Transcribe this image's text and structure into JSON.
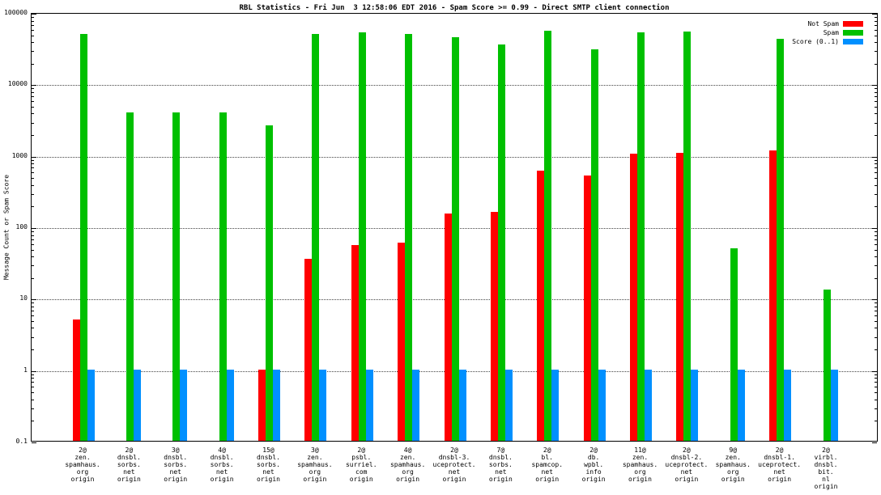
{
  "title": "RBL Statistics - Fri Jun  3 12:58:06 EDT 2016 - Spam Score >= 0.99 - Direct SMTP client connection",
  "ylabel": "Message Count or Spam Score",
  "colors": {
    "not_spam": "#ff0000",
    "spam": "#00c000",
    "score": "#0090ff",
    "axis": "#000000",
    "background": "#ffffff"
  },
  "chart_data": {
    "type": "bar",
    "scale": "log",
    "ylim": [
      0.1,
      100000
    ],
    "grid": true,
    "legend_position": "top-right",
    "yticks": [
      {
        "value": 100000,
        "label": "100000"
      },
      {
        "value": 10000,
        "label": "10000"
      },
      {
        "value": 1000,
        "label": "1000"
      },
      {
        "value": 100,
        "label": "100"
      },
      {
        "value": 10,
        "label": "10"
      },
      {
        "value": 1,
        "label": "1"
      },
      {
        "value": 0.1,
        "label": "0.1"
      }
    ],
    "categories": [
      [
        "2@",
        "zen.",
        "spamhaus.",
        "org",
        "origin"
      ],
      [
        "2@",
        "dnsbl.",
        "sorbs.",
        "net",
        "origin"
      ],
      [
        "3@",
        "dnsbl.",
        "sorbs.",
        "net",
        "origin"
      ],
      [
        "4@",
        "dnsbl.",
        "sorbs.",
        "net",
        "origin"
      ],
      [
        "15@",
        "dnsbl.",
        "sorbs.",
        "net",
        "origin"
      ],
      [
        "3@",
        "zen.",
        "spamhaus.",
        "org",
        "origin"
      ],
      [
        "2@",
        "psbl.",
        "surriel.",
        "com",
        "origin"
      ],
      [
        "4@",
        "zen.",
        "spamhaus.",
        "org",
        "origin"
      ],
      [
        "2@",
        "dnsbl-3.",
        "uceprotect.",
        "net",
        "origin"
      ],
      [
        "7@",
        "dnsbl.",
        "sorbs.",
        "net",
        "origin"
      ],
      [
        "2@",
        "bl.",
        "spamcop.",
        "net",
        "origin"
      ],
      [
        "2@",
        "db.",
        "wpbl.",
        "info",
        "origin"
      ],
      [
        "11@",
        "zen.",
        "spamhaus.",
        "org",
        "origin"
      ],
      [
        "2@",
        "dnsbl-2.",
        "uceprotect.",
        "net",
        "origin"
      ],
      [
        "9@",
        "zen.",
        "spamhaus.",
        "org",
        "origin"
      ],
      [
        "2@",
        "dnsbl-1.",
        "uceprotect.",
        "net",
        "origin"
      ],
      [
        "2@",
        "virbl.",
        "dnsbl.",
        "bit.",
        "nl",
        "origin"
      ]
    ],
    "series": [
      {
        "name": "Not Spam",
        "color": "#ff0000",
        "values": [
          5,
          0,
          0,
          0,
          1,
          35,
          55,
          60,
          150,
          160,
          600,
          520,
          1050,
          1080,
          0,
          1150,
          0
        ]
      },
      {
        "name": "Spam",
        "color": "#00c000",
        "values": [
          50000,
          4000,
          4000,
          4000,
          2600,
          50000,
          52000,
          50000,
          45000,
          35000,
          55000,
          30000,
          52000,
          53000,
          50,
          42000,
          13
        ]
      },
      {
        "name": "Score (0..1)",
        "color": "#0090ff",
        "values": [
          1,
          1,
          1,
          1,
          1,
          1,
          1,
          1,
          1,
          1,
          1,
          1,
          1,
          1,
          1,
          1,
          1
        ]
      }
    ]
  }
}
